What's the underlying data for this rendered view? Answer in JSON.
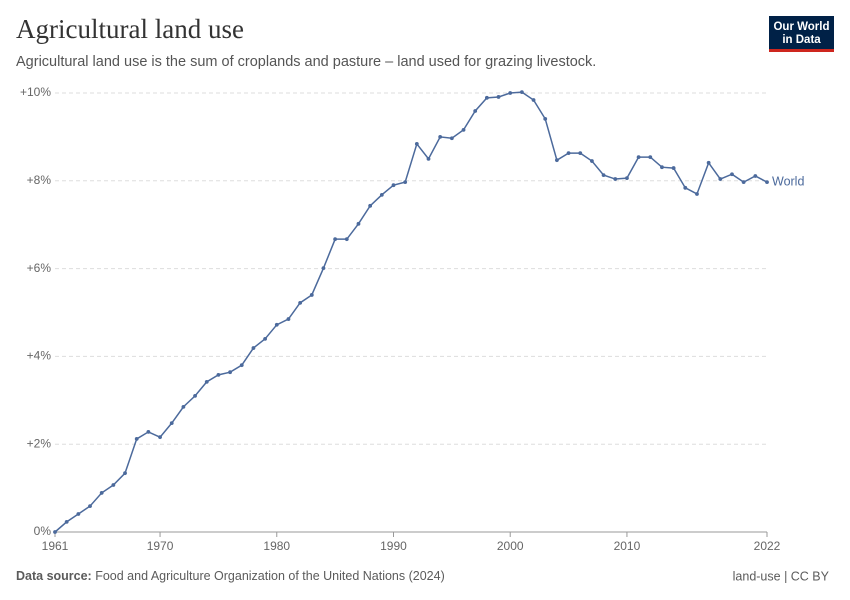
{
  "chart_data": {
    "type": "line",
    "title": "Agricultural land use",
    "subtitle": "Agricultural land use is the sum of croplands and pasture – land used for grazing livestock.",
    "x": [
      1961,
      1962,
      1963,
      1964,
      1965,
      1966,
      1967,
      1968,
      1969,
      1970,
      1971,
      1972,
      1973,
      1974,
      1975,
      1976,
      1977,
      1978,
      1979,
      1980,
      1981,
      1982,
      1983,
      1984,
      1985,
      1986,
      1987,
      1988,
      1989,
      1990,
      1991,
      1992,
      1993,
      1994,
      1995,
      1996,
      1997,
      1998,
      1999,
      2000,
      2001,
      2002,
      2003,
      2004,
      2005,
      2006,
      2007,
      2008,
      2009,
      2010,
      2011,
      2012,
      2013,
      2014,
      2015,
      2016,
      2017,
      2018,
      2019,
      2020,
      2021,
      2022
    ],
    "series": [
      {
        "name": "World",
        "color": "#4c6a9c",
        "values": [
          0,
          0.23,
          0.41,
          0.59,
          0.89,
          1.07,
          1.34,
          2.12,
          2.28,
          2.16,
          2.48,
          2.85,
          3.1,
          3.42,
          3.58,
          3.64,
          3.8,
          4.19,
          4.4,
          4.72,
          4.85,
          5.22,
          5.4,
          6.01,
          6.67,
          6.67,
          7.02,
          7.43,
          7.68,
          7.9,
          7.97,
          8.84,
          8.5,
          9.0,
          8.97,
          9.16,
          9.59,
          9.89,
          9.91,
          10.0,
          10.02,
          9.84,
          9.41,
          8.47,
          8.63,
          8.63,
          8.45,
          8.13,
          8.04,
          8.06,
          8.54,
          8.54,
          8.31,
          8.29,
          7.84,
          7.7,
          8.41,
          8.04,
          8.15,
          7.97,
          8.11,
          7.97
        ]
      }
    ],
    "xlim": [
      1961,
      2022
    ],
    "xticks": [
      1961,
      1970,
      1980,
      1990,
      2000,
      2010,
      2022
    ],
    "ylim": [
      0,
      10
    ],
    "yticks": [
      {
        "value": 0,
        "label": "0%"
      },
      {
        "value": 2,
        "label": "+2%"
      },
      {
        "value": 4,
        "label": "+4%"
      },
      {
        "value": 6,
        "label": "+6%"
      },
      {
        "value": 8,
        "label": "+8%"
      },
      {
        "value": 10,
        "label": "+10%"
      }
    ],
    "grid": true
  },
  "logo": {
    "line1": "Our World",
    "line2": "in Data"
  },
  "footer": {
    "source_label": "Data source:",
    "source": "Food and Agriculture Organization of the United Nations (2024)",
    "license": "land-use | CC BY"
  }
}
